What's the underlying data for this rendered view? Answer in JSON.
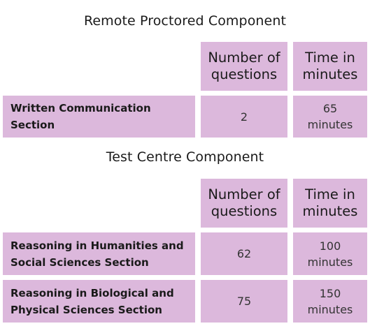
{
  "remote": {
    "title": "Remote Proctored Component",
    "header": {
      "questions": [
        "Number of",
        "questions"
      ],
      "time": [
        "Time in",
        "minutes"
      ]
    },
    "rows": [
      {
        "label": [
          "Written Communication",
          "Section"
        ],
        "questions": "2",
        "time": [
          "65",
          "minutes"
        ]
      }
    ]
  },
  "centre": {
    "title": "Test Centre Component",
    "header": {
      "questions": [
        "Number of",
        "questions"
      ],
      "time": [
        "Time in",
        "minutes"
      ]
    },
    "rows": [
      {
        "label": [
          "Reasoning in Humanities and",
          "Social Sciences Section"
        ],
        "questions": "62",
        "time": [
          "100",
          "minutes"
        ]
      },
      {
        "label": [
          "Reasoning in Biological and",
          "Physical Sciences Section"
        ],
        "questions": "75",
        "time": [
          "150",
          "minutes"
        ]
      }
    ]
  },
  "colors": {
    "cell_background": "#dcb8dc",
    "page_background": "#ffffff"
  }
}
